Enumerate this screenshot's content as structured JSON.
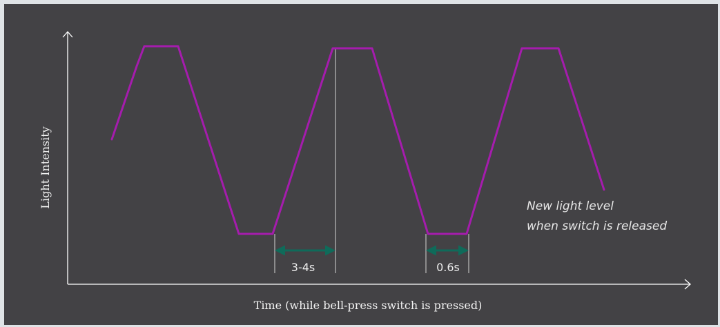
{
  "axes": {
    "y_label": "Light Intensity",
    "x_label": "Time (while bell-press switch is pressed)"
  },
  "annotations": {
    "ramp_duration": "3-4s",
    "dwell_duration": "0.6s",
    "note_line1": "New light level",
    "note_line2": "when switch is released"
  },
  "colors": {
    "background": "#434245",
    "waveform": "#a51cad",
    "axis": "#ffffff",
    "measure_arrow": "#0f6b5a",
    "tick": "#bdbdbd"
  }
}
